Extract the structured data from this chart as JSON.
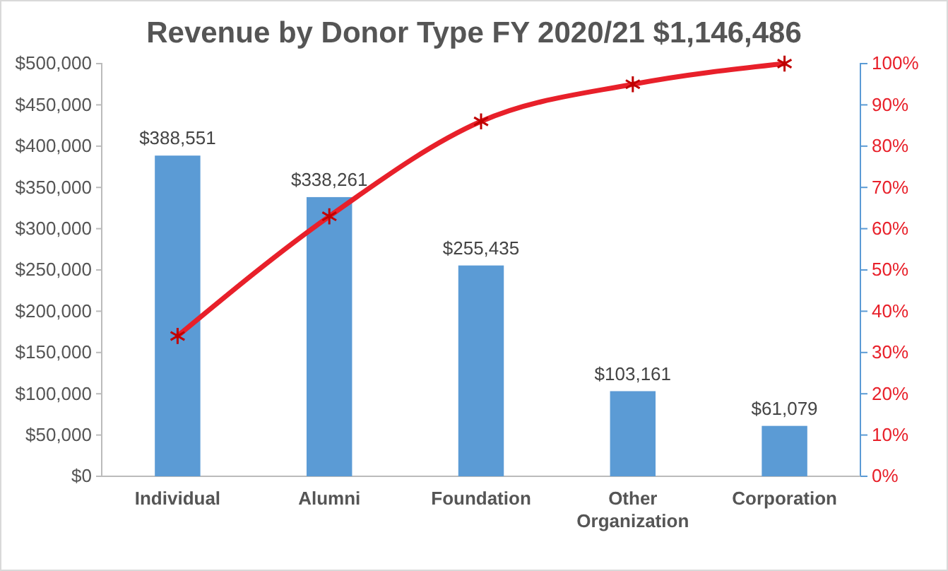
{
  "chart_data": {
    "type": "bar",
    "title": "Revenue by Donor Type FY 2020/21 $1,146,486",
    "categories": [
      "Individual",
      "Alumni",
      "Foundation",
      "Other Organization",
      "Corporation"
    ],
    "series": [
      {
        "color": "#5b9bd5",
        "values": [
          388551,
          338261,
          255435,
          103161,
          61079
        ],
        "value_labels": [
          "$388,551",
          "$338,261",
          "$255,435",
          "$103,161",
          "$61,079"
        ]
      },
      {
        "type": "line",
        "axis": "y2",
        "color": "#e8202a",
        "values": [
          34,
          63,
          86,
          95,
          100
        ],
        "marker": "cross",
        "line_style": "solid"
      }
    ],
    "ylim": [
      0,
      500000
    ],
    "yticks": [
      {
        "value": 0,
        "label": "$0"
      },
      {
        "value": 50000,
        "label": "$50,000"
      },
      {
        "value": 100000,
        "label": "$100,000"
      },
      {
        "value": 150000,
        "label": "$150,000"
      },
      {
        "value": 200000,
        "label": "$200,000"
      },
      {
        "value": 250000,
        "label": "$250,000"
      },
      {
        "value": 300000,
        "label": "$300,000"
      },
      {
        "value": 350000,
        "label": "$350,000"
      },
      {
        "value": 400000,
        "label": "$400,000"
      },
      {
        "value": 450000,
        "label": "$450,000"
      },
      {
        "value": 500000,
        "label": "$500,000"
      }
    ],
    "y2lim": [
      0,
      100
    ],
    "y2ticks": [
      {
        "value": 0,
        "label": "0%"
      },
      {
        "value": 10,
        "label": "10%"
      },
      {
        "value": 20,
        "label": "20%"
      },
      {
        "value": 30,
        "label": "30%"
      },
      {
        "value": 40,
        "label": "40%"
      },
      {
        "value": 50,
        "label": "50%"
      },
      {
        "value": 60,
        "label": "60%"
      },
      {
        "value": 70,
        "label": "70%"
      },
      {
        "value": 80,
        "label": "80%"
      },
      {
        "value": 90,
        "label": "90%"
      },
      {
        "value": 100,
        "label": "100%"
      }
    ],
    "grid": false
  }
}
